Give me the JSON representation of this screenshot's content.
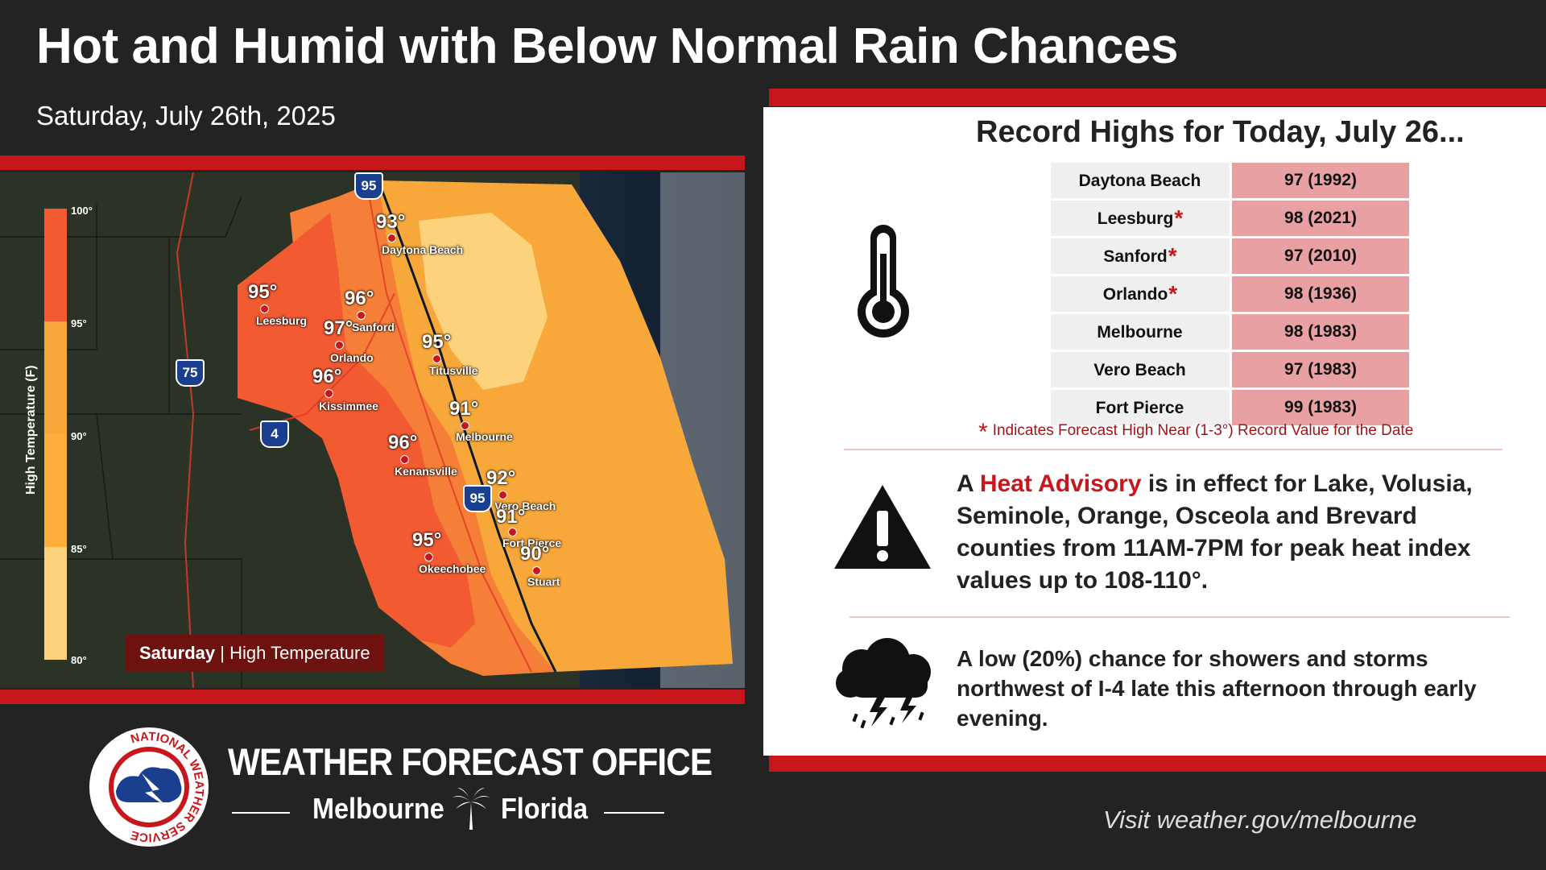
{
  "header": {
    "title": "Hot and Humid with Below Normal Rain Chances",
    "date": "Saturday, July 26th, 2025"
  },
  "map": {
    "legend_title": "High Temperature (F)",
    "legend_ticks": [
      "100°",
      "95°",
      "90°",
      "85°",
      "80°"
    ],
    "caption_bold": "Saturday",
    "caption_rest": "| High Temperature",
    "highways": [
      "95",
      "75",
      "4",
      "95"
    ],
    "points": [
      {
        "temp": "93°",
        "city": "Daytona Beach"
      },
      {
        "temp": "95°",
        "city": "Leesburg"
      },
      {
        "temp": "96°",
        "city": "Sanford"
      },
      {
        "temp": "97°",
        "city": "Orlando"
      },
      {
        "temp": "95°",
        "city": "Titusville"
      },
      {
        "temp": "96°",
        "city": "Kissimmee"
      },
      {
        "temp": "91°",
        "city": "Melbourne"
      },
      {
        "temp": "96°",
        "city": "Kenansville"
      },
      {
        "temp": "92°",
        "city": "Vero Beach"
      },
      {
        "temp": "91°",
        "city": "Fort Pierce"
      },
      {
        "temp": "95°",
        "city": "Okeechobee"
      },
      {
        "temp": "90°",
        "city": "Stuart"
      }
    ],
    "colors": {
      "c100": "#f25a32",
      "c95": "#f57f38",
      "c90": "#f8a83a",
      "c85": "#fdd27d",
      "c80": "#fde3a8"
    }
  },
  "records": {
    "title": "Record Highs for Today, July 26...",
    "rows": [
      {
        "city": "Daytona Beach",
        "star": "",
        "value": "97 (1992)"
      },
      {
        "city": "Leesburg",
        "star": "*",
        "value": "98 (2021)"
      },
      {
        "city": "Sanford",
        "star": "*",
        "value": "97 (2010)"
      },
      {
        "city": "Orlando",
        "star": "*",
        "value": "98 (1936)"
      },
      {
        "city": "Melbourne",
        "star": "",
        "value": "98 (1983)"
      },
      {
        "city": "Vero Beach",
        "star": "",
        "value": "97 (1983)"
      },
      {
        "city": "Fort Pierce",
        "star": "",
        "value": "99 (1983)"
      }
    ],
    "note_star": "*",
    "note": "Indicates Forecast High Near (1-3°) Record Value for the Date"
  },
  "advisory": {
    "prefix": "A ",
    "highlight": "Heat Advisory",
    "rest": " is in effect for Lake, Volusia, Seminole, Orange, Osceola and Brevard counties from 11AM-7PM for peak heat index values up to 108-110°."
  },
  "storms": {
    "text": "A low (20%) chance for showers and storms northwest of I-4 late this afternoon through early evening."
  },
  "footer": {
    "office": "WEATHER FORECAST OFFICE",
    "city": "Melbourne",
    "state": "Florida",
    "logo_text": "NATIONAL WEATHER SERVICE",
    "visit": "Visit weather.gov/melbourne"
  },
  "accent": "#c8161d"
}
